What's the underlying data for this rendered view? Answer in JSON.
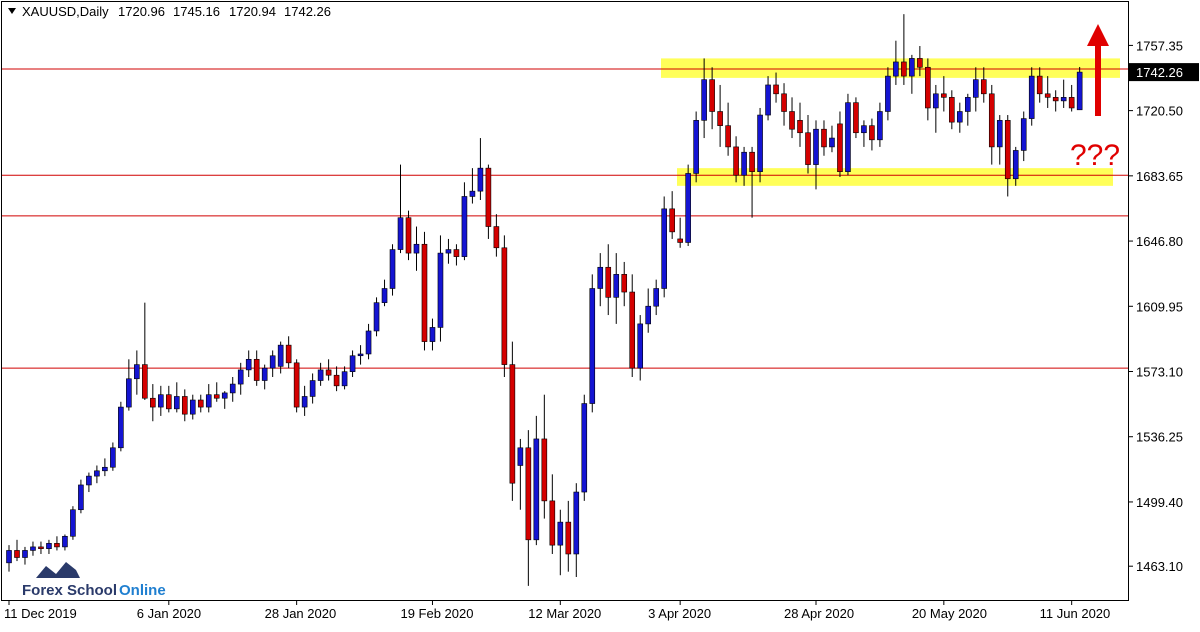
{
  "chart_data": {
    "type": "candlestick",
    "symbol": "XAUUSD,Daily",
    "annotation": "???",
    "watermark": [
      "Forex School",
      "Online"
    ],
    "up_color": "#1414d2",
    "down_color": "#d40000",
    "categories": [
      "11 Dec 2019",
      null,
      null,
      null,
      null,
      null,
      null,
      null,
      null,
      null,
      null,
      null,
      null,
      null,
      null,
      null,
      null,
      null,
      null,
      null,
      "6 Jan 2020",
      null,
      null,
      null,
      null,
      null,
      null,
      null,
      null,
      null,
      null,
      null,
      null,
      null,
      null,
      null,
      "28 Jan 2020",
      null,
      null,
      null,
      null,
      null,
      null,
      null,
      null,
      null,
      null,
      null,
      null,
      null,
      null,
      null,
      null,
      "19 Feb 2020",
      null,
      null,
      null,
      null,
      null,
      null,
      null,
      null,
      null,
      null,
      null,
      null,
      null,
      null,
      null,
      "12 Mar 2020",
      null,
      null,
      null,
      null,
      null,
      null,
      null,
      null,
      null,
      null,
      null,
      null,
      null,
      null,
      "3 Apr 2020",
      null,
      null,
      null,
      null,
      null,
      null,
      null,
      null,
      null,
      null,
      null,
      null,
      null,
      null,
      null,
      null,
      "28 Apr 2020",
      null,
      null,
      null,
      null,
      null,
      null,
      null,
      null,
      null,
      null,
      null,
      null,
      null,
      null,
      null,
      "20 May 2020",
      null,
      null,
      null,
      null,
      null,
      null,
      null,
      null,
      null,
      null,
      null,
      null,
      null,
      null,
      null,
      "11 Jun 2020",
      null
    ],
    "open": [
      1465,
      1472,
      1468,
      1472,
      1474,
      1473,
      1476,
      1474,
      1480,
      1495,
      1509,
      1514,
      1517,
      1519,
      1530,
      1553,
      1569,
      1577,
      1558,
      1553,
      1560,
      1552,
      1559,
      1549,
      1557,
      1553,
      1560,
      1558,
      1561,
      1566,
      1574,
      1580,
      1568,
      1575,
      1576,
      1588,
      1578,
      1553,
      1559,
      1568,
      1574,
      1571,
      1565,
      1573,
      1582,
      1583,
      1596,
      1612,
      1620,
      1642,
      1660,
      1640,
      1645,
      1590,
      1598,
      1640,
      1642,
      1638,
      1672,
      1675,
      1688,
      1655,
      1643,
      1577,
      1520,
      1530,
      1478,
      1535,
      1500,
      1475,
      1488,
      1470,
      1505,
      1555,
      1620,
      1632,
      1615,
      1628,
      1618,
      1575,
      1600,
      1610,
      1620,
      1665,
      1648,
      1646,
      1685,
      1715,
      1738,
      1720,
      1712,
      1700,
      1684,
      1697,
      1686,
      1718,
      1735,
      1730,
      1720,
      1715,
      1708,
      1690,
      1710,
      1700,
      1713,
      1686,
      1725,
      1708,
      1712,
      1704,
      1720,
      1740,
      1748,
      1740,
      1750,
      1745,
      1722,
      1730,
      1728,
      1714,
      1720,
      1728,
      1738,
      1730,
      1700,
      1715,
      1682,
      1698,
      1716,
      1740,
      1730,
      1728,
      1726,
      1728,
      1720.96
    ],
    "high": [
      1475,
      1478,
      1474,
      1477,
      1477,
      1478,
      1480,
      1481,
      1497,
      1512,
      1516,
      1520,
      1524,
      1533,
      1556,
      1580,
      1585,
      1612,
      1566,
      1565,
      1565,
      1567,
      1563,
      1560,
      1560,
      1566,
      1567,
      1562,
      1570,
      1578,
      1585,
      1585,
      1577,
      1585,
      1590,
      1593,
      1580,
      1565,
      1572,
      1578,
      1580,
      1576,
      1576,
      1585,
      1588,
      1600,
      1615,
      1625,
      1645,
      1690,
      1664,
      1655,
      1652,
      1603,
      1650,
      1648,
      1645,
      1680,
      1688,
      1705,
      1690,
      1662,
      1650,
      1590,
      1535,
      1540,
      1548,
      1560,
      1515,
      1495,
      1500,
      1510,
      1560,
      1628,
      1640,
      1645,
      1640,
      1635,
      1628,
      1605,
      1620,
      1625,
      1672,
      1675,
      1660,
      1690,
      1720,
      1750,
      1745,
      1735,
      1725,
      1706,
      1700,
      1700,
      1722,
      1740,
      1742,
      1736,
      1728,
      1725,
      1718,
      1715,
      1715,
      1712,
      1720,
      1730,
      1728,
      1715,
      1716,
      1725,
      1745,
      1760,
      1775,
      1752,
      1757,
      1750,
      1735,
      1740,
      1732,
      1725,
      1730,
      1745,
      1745,
      1735,
      1718,
      1718,
      1700,
      1720,
      1745,
      1745,
      1740,
      1732,
      1738,
      1735,
      1745.16
    ],
    "low": [
      1460,
      1466,
      1464,
      1469,
      1470,
      1470,
      1472,
      1472,
      1478,
      1493,
      1505,
      1510,
      1514,
      1517,
      1528,
      1551,
      1560,
      1557,
      1545,
      1548,
      1550,
      1550,
      1545,
      1546,
      1550,
      1550,
      1556,
      1552,
      1556,
      1560,
      1570,
      1565,
      1563,
      1570,
      1572,
      1575,
      1550,
      1548,
      1555,
      1565,
      1568,
      1562,
      1563,
      1570,
      1577,
      1580,
      1593,
      1610,
      1616,
      1640,
      1636,
      1630,
      1585,
      1585,
      1590,
      1634,
      1633,
      1636,
      1668,
      1670,
      1648,
      1638,
      1570,
      1500,
      1495,
      1452,
      1475,
      1490,
      1470,
      1458,
      1460,
      1457,
      1500,
      1550,
      1610,
      1605,
      1600,
      1610,
      1570,
      1568,
      1595,
      1605,
      1615,
      1648,
      1643,
      1644,
      1680,
      1705,
      1710,
      1700,
      1695,
      1680,
      1678,
      1660,
      1680,
      1715,
      1725,
      1712,
      1705,
      1700,
      1685,
      1676,
      1695,
      1697,
      1683,
      1684,
      1705,
      1700,
      1698,
      1700,
      1715,
      1735,
      1735,
      1730,
      1740,
      1715,
      1708,
      1720,
      1710,
      1708,
      1712,
      1720,
      1725,
      1690,
      1690,
      1672,
      1678,
      1692,
      1712,
      1725,
      1722,
      1720,
      1722,
      1720,
      1720.94
    ],
    "close": [
      1472,
      1468,
      1472,
      1474,
      1473,
      1476,
      1474,
      1480,
      1495,
      1509,
      1514,
      1517,
      1519,
      1530,
      1553,
      1569,
      1577,
      1558,
      1553,
      1560,
      1552,
      1559,
      1549,
      1557,
      1553,
      1560,
      1558,
      1561,
      1566,
      1574,
      1580,
      1568,
      1575,
      1582,
      1588,
      1578,
      1553,
      1559,
      1568,
      1574,
      1571,
      1565,
      1573,
      1582,
      1583,
      1596,
      1612,
      1620,
      1642,
      1660,
      1640,
      1645,
      1590,
      1598,
      1640,
      1642,
      1638,
      1672,
      1675,
      1688,
      1655,
      1643,
      1577,
      1510,
      1530,
      1478,
      1535,
      1500,
      1475,
      1488,
      1470,
      1505,
      1555,
      1620,
      1632,
      1615,
      1628,
      1618,
      1575,
      1600,
      1610,
      1620,
      1665,
      1652,
      1646,
      1685,
      1715,
      1738,
      1720,
      1712,
      1700,
      1684,
      1697,
      1686,
      1718,
      1735,
      1730,
      1720,
      1710,
      1708,
      1690,
      1710,
      1700,
      1705,
      1686,
      1725,
      1708,
      1712,
      1704,
      1720,
      1740,
      1748,
      1740,
      1750,
      1745,
      1722,
      1730,
      1728,
      1714,
      1720,
      1728,
      1738,
      1730,
      1700,
      1715,
      1682,
      1698,
      1716,
      1740,
      1730,
      1728,
      1726,
      1728,
      1722,
      1742.26
    ],
    "hlines": [
      1744,
      1684,
      1661,
      1575
    ],
    "zones": [
      [
        1739,
        1750
      ],
      [
        1678,
        1688
      ]
    ],
    "ylim": [
      1444,
      1783
    ],
    "yticks": [
      1757.35,
      {
        "value": 1720.5,
        "label": "1720.50"
      },
      1683.65,
      {
        "value": 1646.8,
        "label": "1646.80"
      },
      1609.95,
      {
        "value": 1573.1,
        "label": "1573.10"
      },
      1536.25,
      {
        "value": 1499.4,
        "label": "1499.40"
      },
      {
        "value": 1463.1,
        "label": "1463.10"
      }
    ]
  }
}
